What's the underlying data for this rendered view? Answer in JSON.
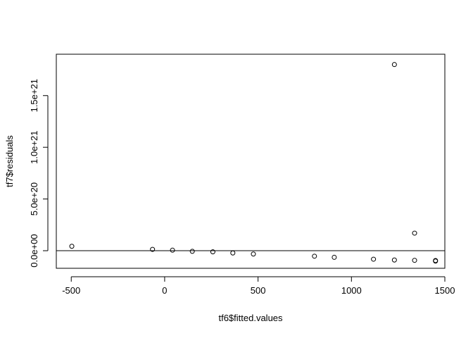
{
  "chart_data": {
    "type": "scatter",
    "title": "",
    "xlabel": "tf6$fitted.values",
    "ylabel": "tf7$residuals",
    "xlim": [
      -580,
      1500
    ],
    "ylim": [
      -1.7e+20,
      1.9e+21
    ],
    "xticks": [
      -500,
      0,
      500,
      1000,
      1500
    ],
    "xtick_labels": [
      "-500",
      "0",
      "500",
      "1000",
      "1500"
    ],
    "yticks": [
      0,
      5e+20,
      1e+21,
      1.5e+21
    ],
    "ytick_labels": [
      "0.0e+00",
      "5.0e+20",
      "1.0e+21",
      "1.5e+21"
    ],
    "hline": 0,
    "grid": false,
    "legend": "none",
    "series": [
      {
        "x": [
          -497,
          -65,
          42,
          148,
          258,
          365,
          475,
          802,
          908,
          1118,
          1230,
          1230,
          1338,
          1338,
          1450,
          1450
        ],
        "y": [
          4.3e+19,
          1.3e+19,
          5e+18,
          -6e+18,
          -1.1e+19,
          -2.2e+19,
          -3.2e+19,
          -5.3e+19,
          -6.4e+19,
          -8.2e+19,
          -9e+19,
          1.8e+21,
          1.7e+20,
          -9.3e+19,
          -9.5e+19,
          -1e+20
        ]
      }
    ]
  }
}
